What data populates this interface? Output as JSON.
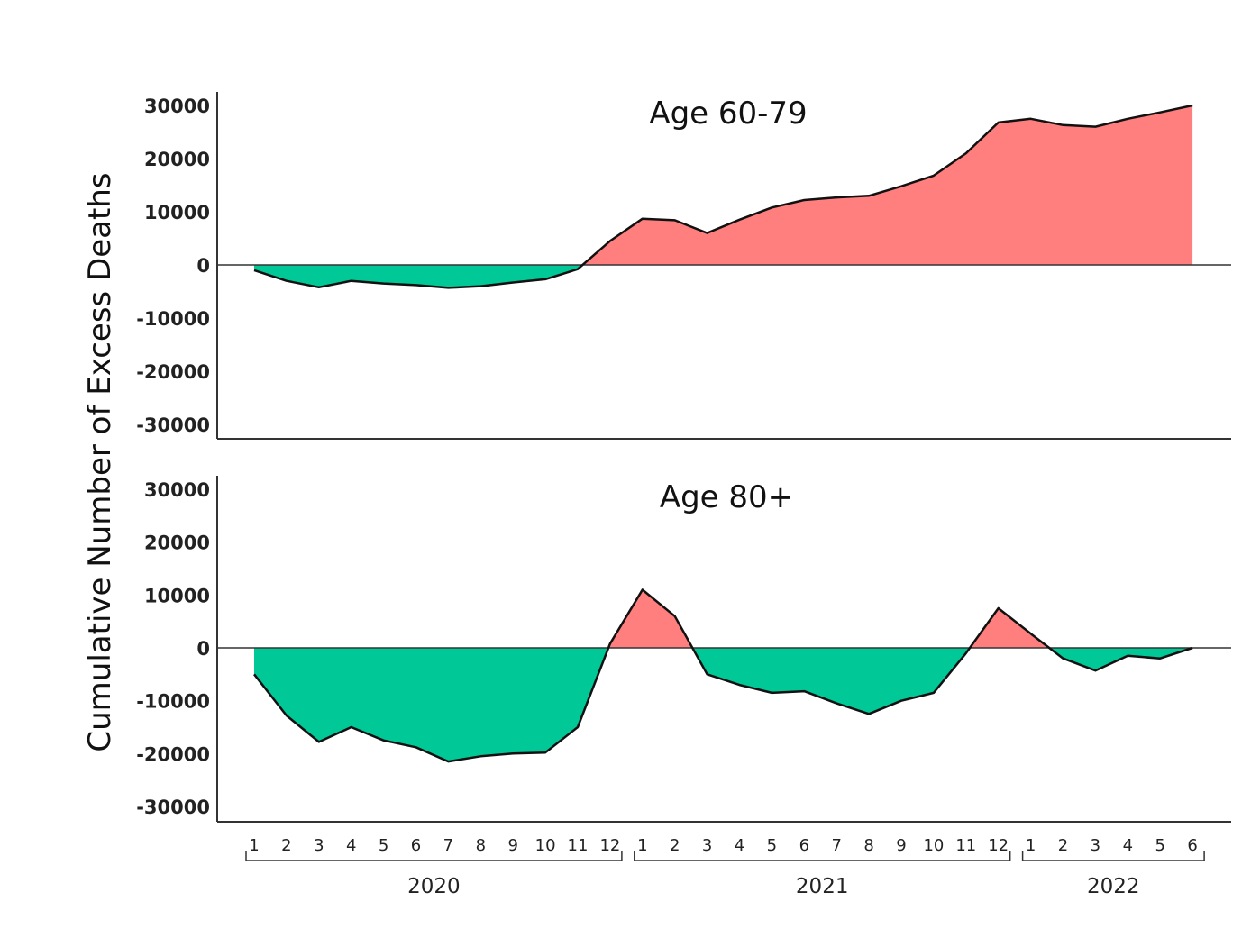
{
  "chart_data": {
    "type": "area",
    "ylabel": "Cumulative Number of Excess Deaths",
    "ylim": [
      -30000,
      30000
    ],
    "yticks": [
      30000,
      20000,
      10000,
      0,
      -10000,
      -20000,
      -30000
    ],
    "months": [
      "1",
      "2",
      "3",
      "4",
      "5",
      "6",
      "7",
      "8",
      "9",
      "10",
      "11",
      "12",
      "1",
      "2",
      "3",
      "4",
      "5",
      "6",
      "7",
      "8",
      "9",
      "10",
      "11",
      "12",
      "1",
      "2",
      "3",
      "4",
      "5",
      "6"
    ],
    "years": [
      {
        "label": "2020",
        "start": 0,
        "end": 11
      },
      {
        "label": "2021",
        "start": 12,
        "end": 23
      },
      {
        "label": "2022",
        "start": 24,
        "end": 29
      }
    ],
    "positive_color": "#ff7f7f",
    "negative_color": "#00c896",
    "panels": [
      {
        "title": "Age 60-79",
        "values": [
          -1000,
          -3000,
          -4200,
          -3000,
          -3500,
          -3800,
          -4300,
          -4000,
          -3300,
          -2700,
          -800,
          4500,
          8700,
          8400,
          6000,
          8500,
          10800,
          12200,
          12700,
          13000,
          14800,
          16800,
          21000,
          26800,
          27500,
          26300,
          26000,
          27500,
          28700,
          30000
        ]
      },
      {
        "title": "Age 80+",
        "values": [
          -5000,
          -12800,
          -17800,
          -15000,
          -17500,
          -18800,
          -21500,
          -20500,
          -20000,
          -19800,
          -15000,
          800,
          11000,
          6000,
          -5000,
          -7000,
          -8500,
          -8200,
          -10500,
          -12500,
          -10000,
          -8500,
          -1000,
          7500,
          2700,
          -2000,
          -4300,
          -1500,
          -2000,
          0
        ]
      }
    ]
  }
}
